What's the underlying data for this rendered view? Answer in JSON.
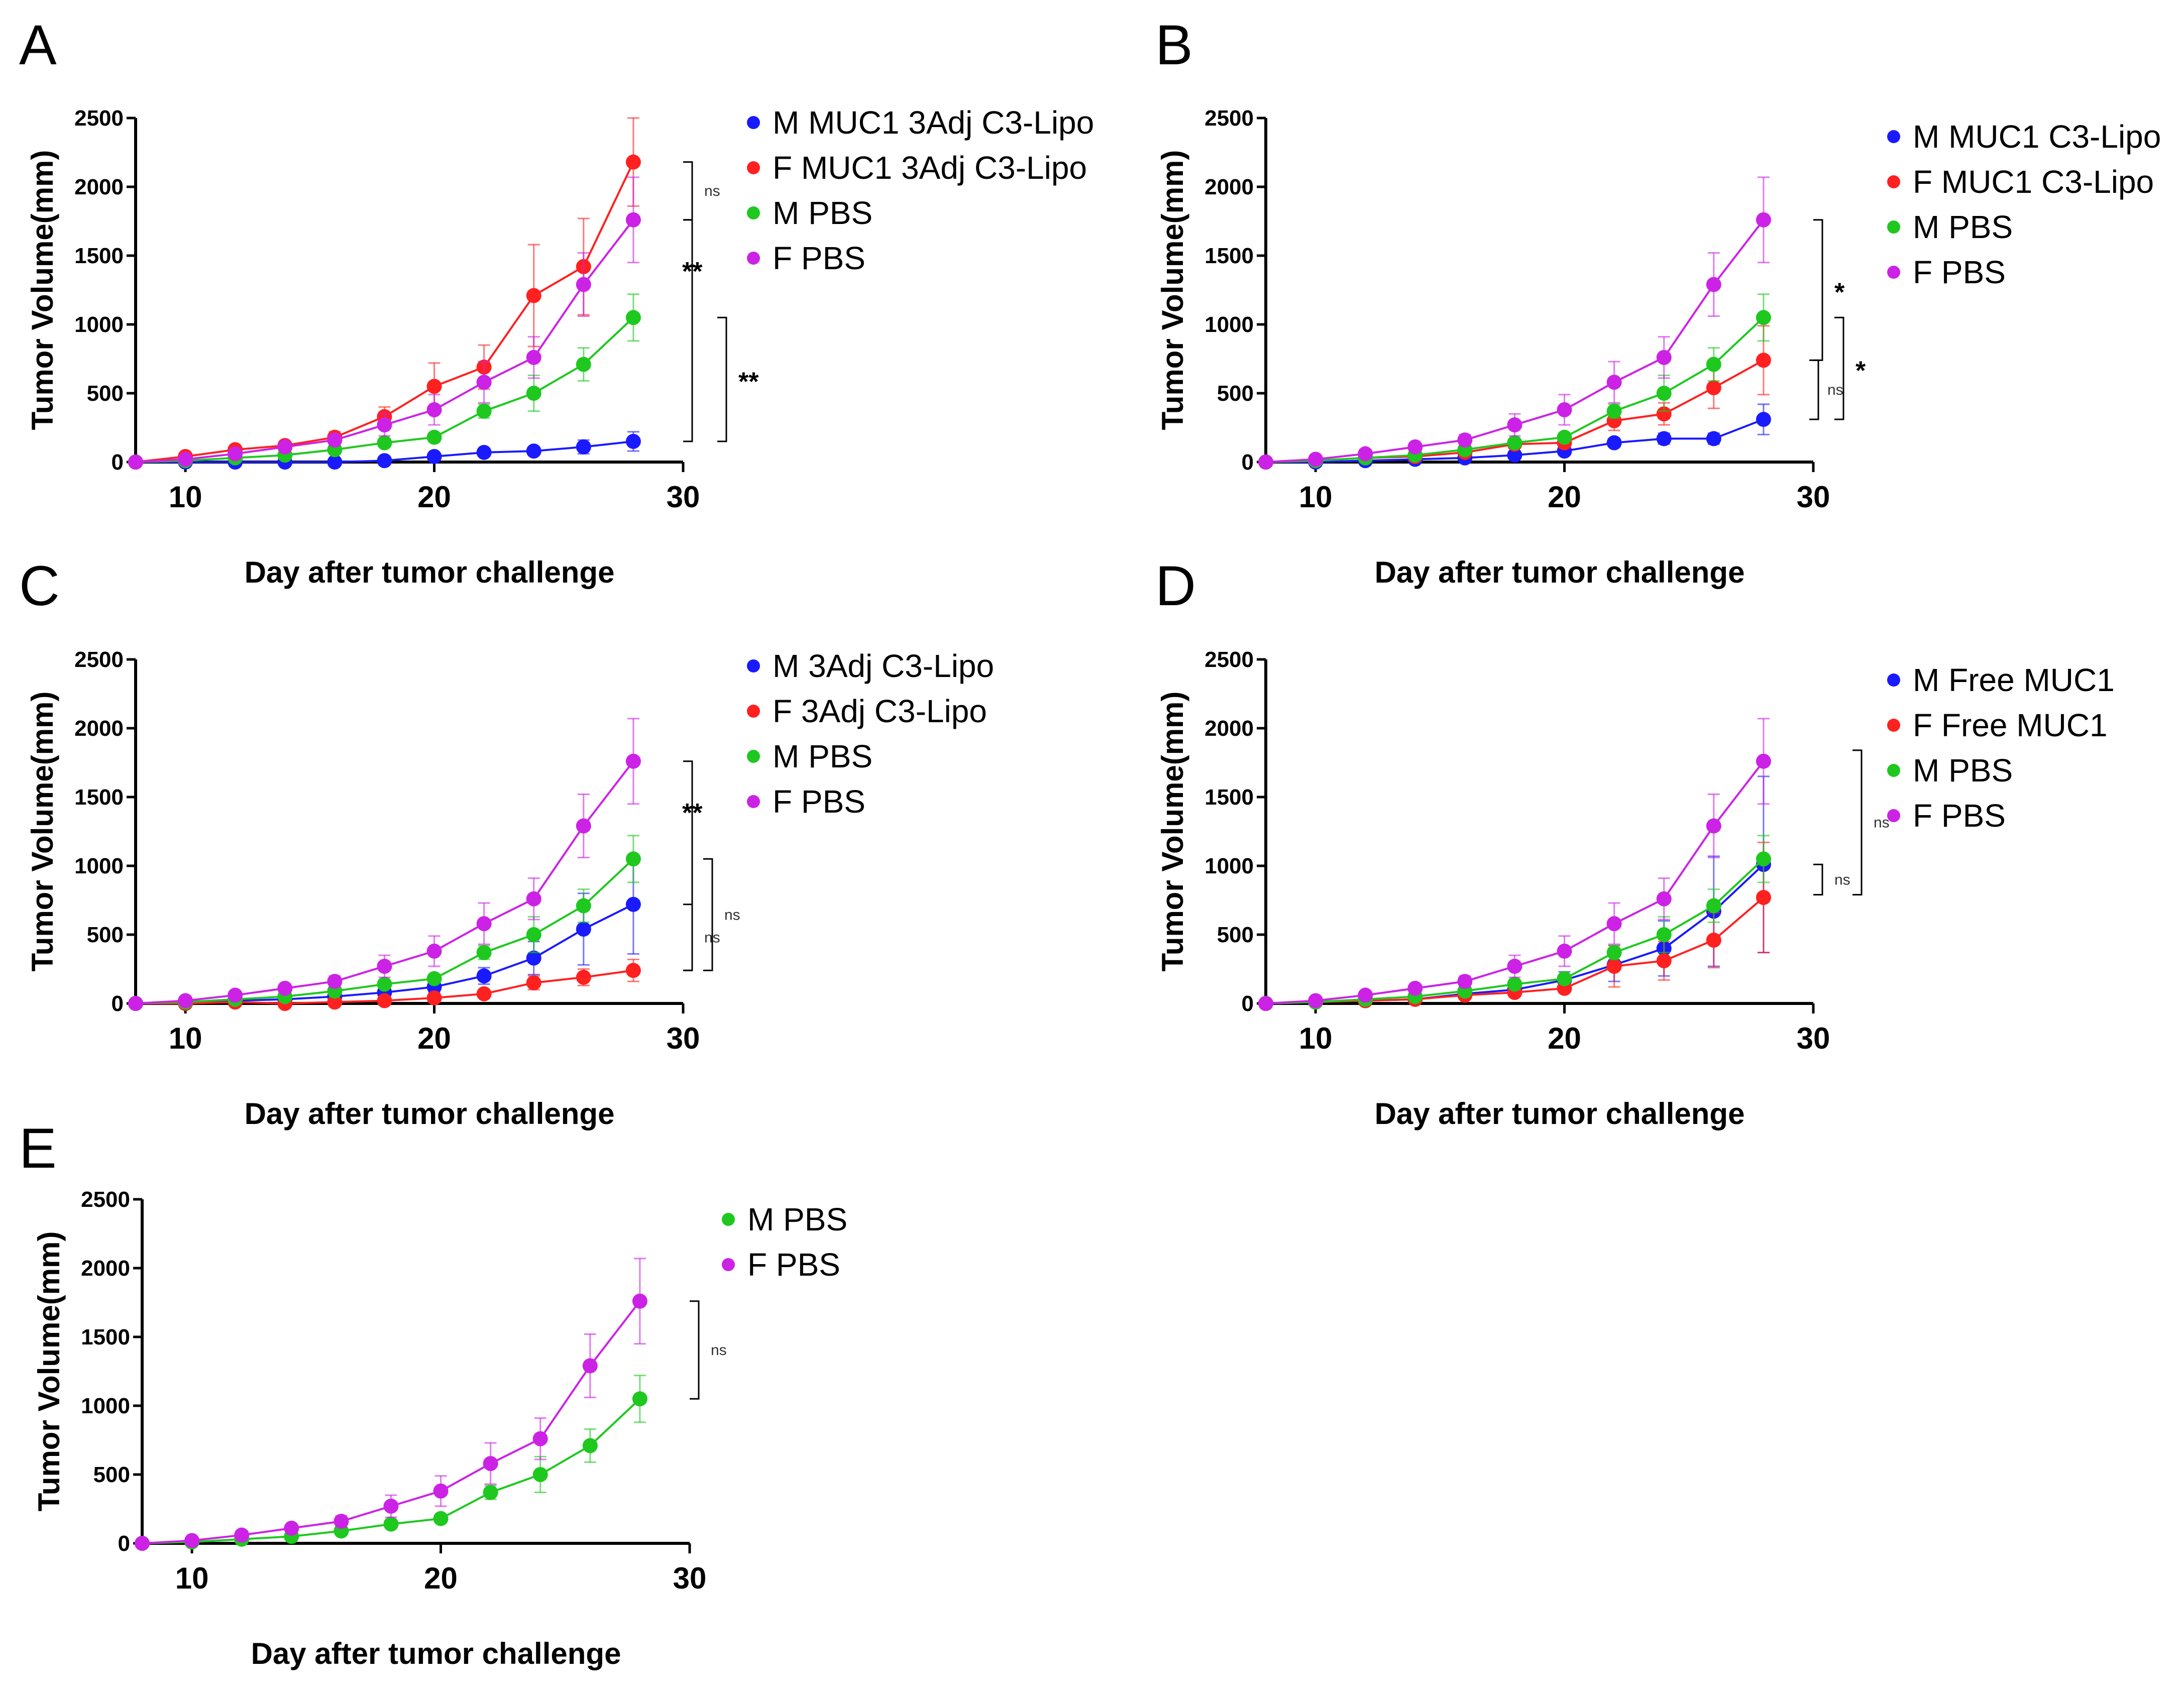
{
  "colors": {
    "M MUC1 3Adj C3-Lipo": "#1a1aff",
    "F MUC1 3Adj C3-Lipo": "#ff2020",
    "M MUC1 C3-Lipo": "#1a1aff",
    "F MUC1 C3-Lipo": "#ff2020",
    "M 3Adj C3-Lipo": "#1a1aff",
    "F 3Adj C3-Lipo": "#ff2020",
    "M Free MUC1": "#1a1aff",
    "F Free MUC1": "#ff2020",
    "M PBS": "#1ec81e",
    "F PBS": "#cc22e6"
  },
  "chart_data": [
    {
      "panel": "A",
      "type": "line",
      "xlabel": "Day after tumor challenge",
      "ylabel": "Tumor Volume(mm)",
      "xlim": [
        8,
        30
      ],
      "ylim": [
        0,
        2500
      ],
      "xticks": [
        "10",
        "20",
        "30"
      ],
      "yticks": [
        "0",
        "500",
        "1000",
        "1500",
        "2000",
        "2500"
      ],
      "x": [
        8,
        10,
        12,
        14,
        16,
        18,
        20,
        22,
        24,
        26,
        28
      ],
      "series": [
        {
          "name": "M MUC1 3Adj C3-Lipo",
          "values": [
            0,
            0,
            0,
            0,
            0,
            10,
            40,
            70,
            80,
            110,
            150
          ],
          "err": [
            0,
            0,
            0,
            0,
            0,
            5,
            10,
            20,
            20,
            50,
            70
          ]
        },
        {
          "name": "F MUC1 3Adj C3-Lipo",
          "values": [
            0,
            40,
            90,
            120,
            180,
            330,
            550,
            690,
            1210,
            1420,
            2180
          ],
          "err": [
            0,
            10,
            15,
            25,
            40,
            70,
            170,
            160,
            370,
            350,
            320
          ]
        },
        {
          "name": "M PBS",
          "values": [
            0,
            10,
            30,
            50,
            90,
            140,
            180,
            370,
            500,
            710,
            1050
          ],
          "err": [
            0,
            5,
            10,
            15,
            20,
            20,
            30,
            50,
            130,
            120,
            170
          ]
        },
        {
          "name": "F PBS",
          "values": [
            0,
            20,
            60,
            110,
            160,
            270,
            380,
            580,
            760,
            1290,
            1760
          ],
          "err": [
            0,
            10,
            15,
            25,
            40,
            80,
            110,
            150,
            150,
            230,
            310
          ]
        }
      ],
      "significance": [
        {
          "label": "ns",
          "from": 2180,
          "to": 1760
        },
        {
          "label": "**",
          "from": 1760,
          "to": 150
        },
        {
          "label": "**",
          "from": 1050,
          "to": 150
        }
      ]
    },
    {
      "panel": "B",
      "type": "line",
      "xlabel": "Day after tumor challenge",
      "ylabel": "Tumor Volume(mm)",
      "xlim": [
        8,
        30
      ],
      "ylim": [
        0,
        2500
      ],
      "xticks": [
        "10",
        "20",
        "30"
      ],
      "yticks": [
        "0",
        "500",
        "1000",
        "1500",
        "2000",
        "2500"
      ],
      "x": [
        8,
        10,
        12,
        14,
        16,
        18,
        20,
        22,
        24,
        26,
        28
      ],
      "series": [
        {
          "name": "M MUC1 C3-Lipo",
          "values": [
            0,
            0,
            10,
            20,
            30,
            50,
            80,
            140,
            170,
            170,
            310
          ],
          "err": [
            0,
            5,
            5,
            10,
            10,
            15,
            20,
            30,
            40,
            40,
            110
          ]
        },
        {
          "name": "F MUC1 C3-Lipo",
          "values": [
            0,
            10,
            30,
            40,
            70,
            130,
            140,
            300,
            350,
            540,
            740
          ],
          "err": [
            0,
            5,
            10,
            10,
            20,
            30,
            40,
            70,
            80,
            150,
            250
          ]
        },
        {
          "name": "M PBS",
          "values": [
            0,
            10,
            30,
            50,
            90,
            140,
            180,
            370,
            500,
            710,
            1050
          ],
          "err": [
            0,
            5,
            10,
            15,
            20,
            20,
            30,
            50,
            130,
            120,
            170
          ]
        },
        {
          "name": "F PBS",
          "values": [
            0,
            20,
            60,
            110,
            160,
            270,
            380,
            580,
            760,
            1290,
            1760
          ],
          "err": [
            0,
            10,
            15,
            25,
            40,
            80,
            110,
            150,
            150,
            230,
            310
          ]
        }
      ],
      "significance": [
        {
          "label": "*",
          "from": 1760,
          "to": 740
        },
        {
          "label": "ns",
          "from": 740,
          "to": 310
        },
        {
          "label": "*",
          "from": 1050,
          "to": 310
        }
      ]
    },
    {
      "panel": "C",
      "type": "line",
      "xlabel": "Day after tumor challenge",
      "ylabel": "Tumor Volume(mm)",
      "xlim": [
        8,
        30
      ],
      "ylim": [
        0,
        2500
      ],
      "xticks": [
        "10",
        "20",
        "30"
      ],
      "yticks": [
        "0",
        "500",
        "1000",
        "1500",
        "2000",
        "2500"
      ],
      "x": [
        8,
        10,
        12,
        14,
        16,
        18,
        20,
        22,
        24,
        26,
        28
      ],
      "series": [
        {
          "name": "M 3Adj C3-Lipo",
          "values": [
            0,
            10,
            20,
            30,
            50,
            80,
            120,
            200,
            330,
            540,
            720
          ],
          "err": [
            0,
            5,
            10,
            10,
            15,
            20,
            40,
            60,
            120,
            260,
            360
          ]
        },
        {
          "name": "F 3Adj C3-Lipo",
          "values": [
            0,
            0,
            10,
            0,
            10,
            20,
            40,
            70,
            150,
            190,
            240
          ],
          "err": [
            0,
            5,
            5,
            5,
            5,
            10,
            15,
            20,
            50,
            60,
            80
          ]
        },
        {
          "name": "M PBS",
          "values": [
            0,
            10,
            30,
            50,
            90,
            140,
            180,
            370,
            500,
            710,
            1050
          ],
          "err": [
            0,
            5,
            10,
            15,
            20,
            20,
            30,
            50,
            130,
            120,
            170
          ]
        },
        {
          "name": "F PBS",
          "values": [
            0,
            20,
            60,
            110,
            160,
            270,
            380,
            580,
            760,
            1290,
            1760
          ],
          "err": [
            0,
            10,
            15,
            25,
            40,
            80,
            110,
            150,
            150,
            230,
            310
          ]
        }
      ],
      "significance": [
        {
          "label": "**",
          "from": 1760,
          "to": 240
        },
        {
          "label": "ns",
          "from": 1050,
          "to": 240
        },
        {
          "label": "ns",
          "from": 720,
          "to": 240
        }
      ]
    },
    {
      "panel": "D",
      "type": "line",
      "xlabel": "Day after tumor challenge",
      "ylabel": "Tumor Volume(mm)",
      "xlim": [
        8,
        30
      ],
      "ylim": [
        0,
        2500
      ],
      "xticks": [
        "10",
        "20",
        "30"
      ],
      "yticks": [
        "0",
        "500",
        "1000",
        "1500",
        "2000",
        "2500"
      ],
      "x": [
        8,
        10,
        12,
        14,
        16,
        18,
        20,
        22,
        24,
        26,
        28
      ],
      "series": [
        {
          "name": "M Free MUC1",
          "values": [
            0,
            10,
            20,
            30,
            70,
            100,
            170,
            280,
            400,
            670,
            1010
          ],
          "err": [
            0,
            5,
            10,
            10,
            20,
            30,
            60,
            120,
            200,
            400,
            640
          ]
        },
        {
          "name": "F Free MUC1",
          "values": [
            0,
            10,
            20,
            30,
            60,
            80,
            110,
            270,
            310,
            460,
            770
          ],
          "err": [
            0,
            5,
            10,
            10,
            15,
            20,
            30,
            150,
            140,
            200,
            400
          ]
        },
        {
          "name": "M PBS",
          "values": [
            0,
            10,
            30,
            50,
            90,
            140,
            180,
            370,
            500,
            710,
            1050
          ],
          "err": [
            0,
            5,
            10,
            15,
            20,
            20,
            30,
            50,
            130,
            120,
            170
          ]
        },
        {
          "name": "F PBS",
          "values": [
            0,
            20,
            60,
            110,
            160,
            270,
            380,
            580,
            760,
            1290,
            1760
          ],
          "err": [
            0,
            10,
            15,
            25,
            40,
            80,
            110,
            150,
            150,
            230,
            310
          ]
        }
      ],
      "significance": [
        {
          "label": "ns",
          "from": 1840,
          "to": 790
        },
        {
          "label": "ns",
          "from": 1010,
          "to": 790
        }
      ]
    },
    {
      "panel": "E",
      "type": "line",
      "xlabel": "Day after tumor challenge",
      "ylabel": "Tumor Volume(mm)",
      "xlim": [
        8,
        30
      ],
      "ylim": [
        0,
        2500
      ],
      "xticks": [
        "10",
        "20",
        "30"
      ],
      "yticks": [
        "0",
        "500",
        "1000",
        "1500",
        "2000",
        "2500"
      ],
      "x": [
        8,
        10,
        12,
        14,
        16,
        18,
        20,
        22,
        24,
        26,
        28
      ],
      "series": [
        {
          "name": "M PBS",
          "values": [
            0,
            10,
            30,
            50,
            90,
            140,
            180,
            370,
            500,
            710,
            1050
          ],
          "err": [
            0,
            5,
            10,
            15,
            20,
            20,
            30,
            50,
            130,
            120,
            170
          ]
        },
        {
          "name": "F PBS",
          "values": [
            0,
            20,
            60,
            110,
            160,
            270,
            380,
            580,
            760,
            1290,
            1760
          ],
          "err": [
            0,
            10,
            15,
            25,
            40,
            80,
            110,
            150,
            150,
            230,
            310
          ]
        }
      ],
      "significance": [
        {
          "label": "ns",
          "from": 1760,
          "to": 1050
        }
      ]
    }
  ]
}
